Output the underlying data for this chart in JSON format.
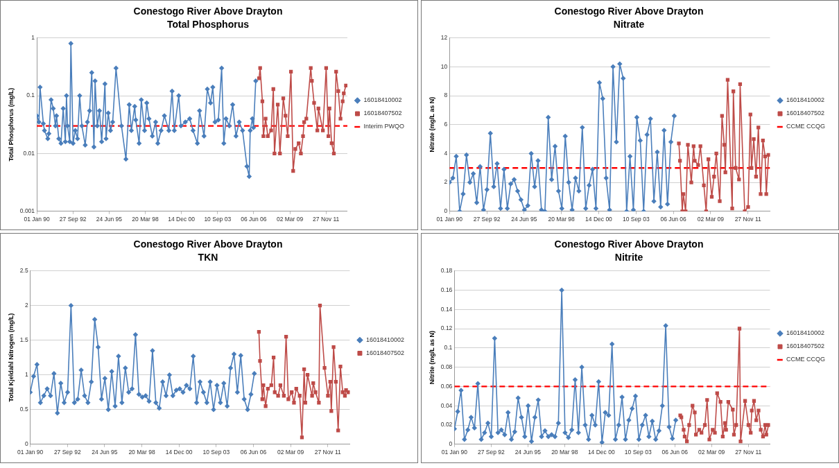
{
  "chart_data": [
    {
      "type": "line",
      "title": "Conestogo River Above Drayton",
      "subtitle": "Total Phosphorus",
      "ylabel": "Total Phosphorus (mg/L)",
      "log": "y",
      "ylim": [
        0.001,
        1
      ],
      "yticks": [
        0.001,
        0.01,
        0.1,
        1
      ],
      "xlim": [
        "1990-01-01",
        "2013-07-10"
      ],
      "xticks": [
        {
          "value": "1990-01-01",
          "label": "01 Jan 90"
        },
        {
          "value": "1992-09-27",
          "label": "27 Sep 92"
        },
        {
          "value": "1995-06-24",
          "label": "24 Jun 95"
        },
        {
          "value": "1998-03-20",
          "label": "20 Mar 98"
        },
        {
          "value": "2000-12-14",
          "label": "14 Dec 00"
        },
        {
          "value": "2003-09-10",
          "label": "10 Sep 03"
        },
        {
          "value": "2006-06-06",
          "label": "06 Jun 06"
        },
        {
          "value": "2009-03-02",
          "label": "02 Mar 09"
        },
        {
          "value": "2011-11-27",
          "label": "27 Nov 11"
        }
      ],
      "grid": "y",
      "legend": "right",
      "ref_lines": [
        {
          "axis": "y",
          "value": 0.03,
          "label": "Interim PWQO",
          "color": "#ff0000",
          "line_style": "dashed"
        }
      ],
      "series": [
        {
          "name": "16018410002",
          "color": "#4a7ebb",
          "marker": "diamond",
          "x": [
            "1990-01",
            "1990-03",
            "1990-04",
            "1990-07",
            "1990-08",
            "1990-11",
            "1990-12",
            "1991-02",
            "1991-04",
            "1991-06",
            "1991-07",
            "1991-09",
            "1991-11",
            "1992-01",
            "1992-03",
            "1992-04",
            "1992-05",
            "1992-07",
            "1992-08",
            "1992-10",
            "1992-12",
            "1993-02",
            "1993-04",
            "1993-06",
            "1993-09",
            "1993-11",
            "1994-01",
            "1994-03",
            "1994-05",
            "1994-06",
            "1994-08",
            "1994-10",
            "1994-12",
            "1995-03",
            "1995-04",
            "1995-06",
            "1995-08",
            "1995-10",
            "1996-01",
            "1996-06",
            "1996-10",
            "1997-01",
            "1997-03",
            "1997-06",
            "1997-07",
            "1997-10",
            "1997-12",
            "1998-03",
            "1998-05",
            "1998-07",
            "1998-10",
            "1999-01",
            "1999-03",
            "1999-06",
            "1999-09",
            "2000-01",
            "2000-04",
            "2000-06",
            "2000-10",
            "2000-12",
            "2001-04",
            "2001-08",
            "2001-11",
            "2002-03",
            "2002-05",
            "2002-09",
            "2002-12",
            "2003-03",
            "2003-05",
            "2003-07",
            "2003-10",
            "2004-01",
            "2004-03",
            "2004-05",
            "2004-08",
            "2004-11",
            "2005-02",
            "2005-05",
            "2005-08",
            "2005-12",
            "2006-02",
            "2006-03",
            "2006-05",
            "2006-06",
            "2006-08"
          ],
          "values": [
            0.045,
            0.035,
            0.14,
            0.033,
            0.025,
            0.018,
            0.022,
            0.085,
            0.06,
            0.03,
            0.045,
            0.018,
            0.015,
            0.06,
            0.016,
            0.1,
            0.03,
            0.016,
            0.8,
            0.015,
            0.025,
            0.018,
            0.1,
            0.03,
            0.014,
            0.035,
            0.055,
            0.25,
            0.013,
            0.18,
            0.03,
            0.055,
            0.016,
            0.16,
            0.018,
            0.05,
            0.025,
            0.035,
            0.3,
            0.03,
            0.008,
            0.07,
            0.025,
            0.065,
            0.038,
            0.015,
            0.085,
            0.025,
            0.075,
            0.04,
            0.02,
            0.035,
            0.015,
            0.025,
            0.045,
            0.025,
            0.12,
            0.025,
            0.1,
            0.03,
            0.035,
            0.04,
            0.025,
            0.015,
            0.055,
            0.02,
            0.13,
            0.075,
            0.14,
            0.035,
            0.038,
            0.3,
            0.015,
            0.04,
            0.03,
            0.07,
            0.02,
            0.035,
            0.025,
            0.006,
            0.004,
            0.025,
            0.04,
            0.028,
            0.18
          ]
        },
        {
          "name": "16018407502",
          "color": "#be4b48",
          "marker": "square",
          "x": [
            "2006-11",
            "2006-12",
            "2007-02",
            "2007-03",
            "2007-05",
            "2007-07",
            "2007-10",
            "2007-12",
            "2008-01",
            "2008-04",
            "2008-06",
            "2008-09",
            "2008-11",
            "2009-01",
            "2009-04",
            "2009-06",
            "2009-08",
            "2009-11",
            "2010-01",
            "2010-03",
            "2010-04",
            "2010-06",
            "2010-10",
            "2010-11",
            "2011-01",
            "2011-04",
            "2011-05",
            "2011-09",
            "2011-12",
            "2012-02",
            "2012-03",
            "2012-05",
            "2012-07",
            "2012-09",
            "2012-11",
            "2013-01",
            "2013-03",
            "2013-04",
            "2013-06"
          ],
          "values": [
            0.2,
            0.3,
            0.08,
            0.02,
            0.04,
            0.02,
            0.025,
            0.13,
            0.01,
            0.07,
            0.01,
            0.09,
            0.045,
            0.02,
            0.26,
            0.005,
            0.012,
            0.015,
            0.01,
            0.02,
            0.035,
            0.04,
            0.3,
            0.18,
            0.075,
            0.025,
            0.06,
            0.025,
            0.3,
            0.02,
            0.06,
            0.015,
            0.01,
            0.26,
            0.12,
            0.04,
            0.08,
            0.11,
            0.15
          ]
        }
      ]
    },
    {
      "type": "line",
      "title": "Conestogo River Above Drayton",
      "subtitle": "Nitrate",
      "ylabel": "Nitrate (mg/L as N)",
      "ylim": [
        0,
        12
      ],
      "yticks": [
        0,
        2,
        4,
        6,
        8,
        10,
        12
      ],
      "xlim": [
        "1990-01-01",
        "2013-07-10"
      ],
      "xticks": [
        {
          "value": "1990-01-01",
          "label": "01 Jan 90"
        },
        {
          "value": "1992-09-27",
          "label": "27 Sep 92"
        },
        {
          "value": "1995-06-24",
          "label": "24 Jun 95"
        },
        {
          "value": "1998-03-20",
          "label": "20 Mar 98"
        },
        {
          "value": "2000-12-14",
          "label": "14 Dec 00"
        },
        {
          "value": "2003-09-10",
          "label": "10 Sep 03"
        },
        {
          "value": "2006-06-06",
          "label": "06 Jun 06"
        },
        {
          "value": "2009-03-02",
          "label": "02 Mar 09"
        },
        {
          "value": "2011-11-27",
          "label": "27 Nov 11"
        }
      ],
      "grid": "y",
      "legend": "right",
      "ref_lines": [
        {
          "axis": "y",
          "value": 3,
          "label": "CCME CCQG",
          "color": "#ff0000",
          "line_style": "dashed"
        }
      ],
      "series": [
        {
          "name": "16018410002",
          "color": "#4a7ebb",
          "marker": "diamond",
          "x": [
            "1990-01",
            "1990-04",
            "1990-07",
            "1990-10",
            "1991-01",
            "1991-04",
            "1991-07",
            "1991-10",
            "1992-01",
            "1992-04",
            "1992-07",
            "1992-10",
            "1993-01",
            "1993-04",
            "1993-07",
            "1993-10",
            "1994-01",
            "1994-04",
            "1994-07",
            "1994-10",
            "1995-01",
            "1995-04",
            "1995-07",
            "1995-10",
            "1996-01",
            "1996-04",
            "1996-07",
            "1996-10",
            "1997-01",
            "1997-04",
            "1997-07",
            "1997-10",
            "1998-01",
            "1998-04",
            "1998-07",
            "1998-10",
            "1999-01",
            "1999-04",
            "1999-07",
            "1999-10",
            "2000-01",
            "2000-04",
            "2000-07",
            "2000-10",
            "2001-01",
            "2001-04",
            "2001-07",
            "2001-10",
            "2002-01",
            "2002-04",
            "2002-07",
            "2002-10",
            "2003-01",
            "2003-04",
            "2003-07",
            "2003-10",
            "2004-01",
            "2004-04",
            "2004-07",
            "2004-10",
            "2005-01",
            "2005-04",
            "2005-07",
            "2005-10",
            "2006-01",
            "2006-04",
            "2006-07"
          ],
          "values": [
            2.0,
            2.3,
            3.8,
            0.0,
            1.2,
            3.9,
            2.0,
            2.6,
            0.6,
            3.1,
            0.1,
            1.5,
            5.4,
            1.7,
            3.3,
            0.2,
            2.9,
            0.2,
            1.9,
            2.2,
            1.4,
            0.8,
            0.1,
            0.4,
            4.0,
            1.7,
            3.5,
            0.1,
            0.0,
            6.5,
            2.2,
            4.5,
            1.4,
            0.2,
            5.2,
            2.0,
            0.1,
            2.3,
            1.4,
            5.8,
            0.2,
            1.8,
            2.9,
            0.2,
            8.9,
            7.8,
            2.3,
            0.1,
            10.0,
            4.8,
            10.2,
            9.2,
            0.0,
            3.8,
            0.1,
            6.5,
            4.9,
            0.0,
            5.3,
            6.4,
            0.7,
            4.1,
            0.3,
            5.6,
            0.5,
            4.8,
            6.6
          ]
        },
        {
          "name": "16018407502",
          "color": "#be4b48",
          "marker": "square",
          "x": [
            "2006-11",
            "2006-12",
            "2007-02",
            "2007-03",
            "2007-05",
            "2007-07",
            "2007-10",
            "2007-12",
            "2008-01",
            "2008-04",
            "2008-06",
            "2008-09",
            "2008-11",
            "2009-01",
            "2009-04",
            "2009-06",
            "2009-08",
            "2009-11",
            "2010-01",
            "2010-03",
            "2010-04",
            "2010-06",
            "2010-10",
            "2010-11",
            "2011-01",
            "2011-04",
            "2011-05",
            "2011-09",
            "2011-12",
            "2012-02",
            "2012-03",
            "2012-05",
            "2012-07",
            "2012-09",
            "2012-11",
            "2013-01",
            "2013-03",
            "2013-04",
            "2013-06"
          ],
          "values": [
            4.7,
            3.5,
            0.0,
            1.2,
            0.0,
            4.6,
            2.0,
            4.5,
            3.5,
            3.2,
            4.5,
            1.8,
            0.0,
            3.6,
            1.0,
            2.4,
            4.0,
            0.7,
            6.6,
            4.6,
            2.7,
            9.1,
            0.2,
            8.3,
            3.0,
            2.2,
            8.8,
            0.0,
            0.3,
            6.7,
            3.0,
            5.0,
            2.4,
            5.8,
            1.2,
            4.9,
            3.8,
            1.2,
            3.9
          ]
        }
      ]
    },
    {
      "type": "line",
      "title": "Conestogo River Above Drayton",
      "subtitle": "TKN",
      "ylabel": "Total Kjeldahl Nitrogen (mg/L)",
      "ylim": [
        0,
        2.5
      ],
      "yticks": [
        0,
        0.5,
        1,
        1.5,
        2,
        2.5
      ],
      "xlim": [
        "1990-01-01",
        "2013-07-10"
      ],
      "xticks": [
        {
          "value": "1990-01-01",
          "label": "01 Jan 90"
        },
        {
          "value": "1992-09-27",
          "label": "27 Sep 92"
        },
        {
          "value": "1995-06-24",
          "label": "24 Jun 95"
        },
        {
          "value": "1998-03-20",
          "label": "20 Mar 98"
        },
        {
          "value": "2000-12-14",
          "label": "14 Dec 00"
        },
        {
          "value": "2003-09-10",
          "label": "10 Sep 03"
        },
        {
          "value": "2006-06-06",
          "label": "06 Jun 06"
        },
        {
          "value": "2009-03-02",
          "label": "02 Mar 09"
        },
        {
          "value": "2011-11-27",
          "label": "27 Nov 11"
        }
      ],
      "grid": "y",
      "legend": "right",
      "series": [
        {
          "name": "16018410002",
          "color": "#4a7ebb",
          "marker": "diamond",
          "x": [
            "1990-01",
            "1990-04",
            "1990-07",
            "1990-10",
            "1991-01",
            "1991-04",
            "1991-07",
            "1991-10",
            "1992-01",
            "1992-04",
            "1992-07",
            "1992-10",
            "1993-01",
            "1993-04",
            "1993-07",
            "1993-10",
            "1994-01",
            "1994-04",
            "1994-07",
            "1994-10",
            "1995-01",
            "1995-04",
            "1995-07",
            "1995-10",
            "1996-01",
            "1996-04",
            "1996-07",
            "1996-10",
            "1997-01",
            "1997-04",
            "1997-07",
            "1997-10",
            "1998-01",
            "1998-04",
            "1998-07",
            "1998-10",
            "1999-01",
            "1999-04",
            "1999-07",
            "1999-10",
            "2000-01",
            "2000-04",
            "2000-07",
            "2000-10",
            "2001-01",
            "2001-04",
            "2001-07",
            "2001-10",
            "2002-01",
            "2002-04",
            "2002-07",
            "2002-10",
            "2003-01",
            "2003-04",
            "2003-07",
            "2003-10",
            "2004-01",
            "2004-04",
            "2004-07",
            "2004-10",
            "2005-01",
            "2005-04",
            "2005-07",
            "2005-10",
            "2006-01",
            "2006-04",
            "2006-07"
          ],
          "values": [
            0.75,
            0.98,
            1.15,
            0.6,
            0.7,
            0.8,
            0.7,
            1.02,
            0.45,
            0.88,
            0.6,
            0.75,
            2.0,
            0.6,
            0.65,
            1.07,
            0.7,
            0.6,
            0.9,
            1.8,
            1.4,
            0.65,
            0.95,
            0.5,
            1.05,
            0.55,
            1.27,
            0.6,
            1.1,
            0.75,
            0.8,
            1.58,
            0.72,
            0.68,
            0.7,
            0.62,
            1.35,
            0.6,
            0.52,
            0.9,
            0.7,
            1.0,
            0.7,
            0.78,
            0.8,
            0.75,
            0.85,
            0.8,
            1.27,
            0.6,
            0.9,
            0.75,
            0.6,
            0.9,
            0.5,
            0.85,
            0.6,
            0.88,
            0.55,
            1.1,
            1.3,
            0.75,
            1.28,
            0.65,
            0.5,
            0.72,
            1.02
          ]
        },
        {
          "name": "16018407502",
          "color": "#be4b48",
          "marker": "square",
          "x": [
            "2006-11",
            "2006-12",
            "2007-02",
            "2007-03",
            "2007-05",
            "2007-07",
            "2007-10",
            "2007-12",
            "2008-01",
            "2008-04",
            "2008-06",
            "2008-09",
            "2008-11",
            "2009-01",
            "2009-04",
            "2009-06",
            "2009-08",
            "2009-11",
            "2010-01",
            "2010-03",
            "2010-04",
            "2010-06",
            "2010-10",
            "2010-11",
            "2011-01",
            "2011-04",
            "2011-05",
            "2011-09",
            "2011-12",
            "2012-02",
            "2012-03",
            "2012-05",
            "2012-07",
            "2012-09",
            "2012-11",
            "2013-01",
            "2013-03",
            "2013-04",
            "2013-06"
          ],
          "values": [
            1.62,
            1.2,
            0.65,
            0.85,
            0.55,
            0.8,
            0.85,
            1.25,
            0.75,
            0.7,
            0.85,
            0.7,
            1.55,
            0.65,
            0.75,
            0.6,
            0.8,
            0.7,
            0.1,
            1.08,
            0.6,
            1.0,
            0.7,
            0.88,
            0.75,
            0.6,
            2.0,
            1.1,
            0.7,
            0.9,
            0.48,
            1.4,
            0.9,
            0.2,
            1.12,
            0.75,
            0.7,
            0.78,
            0.75
          ]
        }
      ]
    },
    {
      "type": "line",
      "title": "Conestogo River Above Drayton",
      "subtitle": "Nitrite",
      "ylabel": "Nitrite (mg/L as N)",
      "ylim": [
        0,
        0.18
      ],
      "yticks": [
        0,
        0.02,
        0.04,
        0.06,
        0.08,
        0.1,
        0.12,
        0.14,
        0.16,
        0.18
      ],
      "xlim": [
        "1990-01-01",
        "2013-07-10"
      ],
      "xticks": [
        {
          "value": "1990-01-01",
          "label": "01 Jan 90"
        },
        {
          "value": "1992-09-27",
          "label": "27 Sep 92"
        },
        {
          "value": "1995-06-24",
          "label": "24 Jun 95"
        },
        {
          "value": "1998-03-20",
          "label": "20 Mar 98"
        },
        {
          "value": "2000-12-14",
          "label": "14 Dec 00"
        },
        {
          "value": "2003-09-10",
          "label": "10 Sep 03"
        },
        {
          "value": "2006-06-06",
          "label": "06 Jun 06"
        },
        {
          "value": "2009-03-02",
          "label": "02 Mar 09"
        },
        {
          "value": "2011-11-27",
          "label": "27 Nov 11"
        }
      ],
      "grid": "y",
      "legend": "right",
      "ref_lines": [
        {
          "axis": "y",
          "value": 0.06,
          "label": "CCME CCQG",
          "color": "#ff0000",
          "line_style": "dashed"
        }
      ],
      "series": [
        {
          "name": "16018410002",
          "color": "#4a7ebb",
          "marker": "diamond",
          "x": [
            "1990-01",
            "1990-04",
            "1990-07",
            "1990-10",
            "1991-01",
            "1991-04",
            "1991-07",
            "1991-10",
            "1992-01",
            "1992-04",
            "1992-07",
            "1992-10",
            "1993-01",
            "1993-04",
            "1993-07",
            "1993-10",
            "1994-01",
            "1994-04",
            "1994-07",
            "1994-10",
            "1995-01",
            "1995-04",
            "1995-07",
            "1995-10",
            "1996-01",
            "1996-04",
            "1996-07",
            "1996-10",
            "1997-01",
            "1997-04",
            "1997-07",
            "1997-10",
            "1998-01",
            "1998-04",
            "1998-07",
            "1998-10",
            "1999-01",
            "1999-04",
            "1999-07",
            "1999-10",
            "2000-01",
            "2000-04",
            "2000-07",
            "2000-10",
            "2001-01",
            "2001-04",
            "2001-07",
            "2001-10",
            "2002-01",
            "2002-04",
            "2002-07",
            "2002-10",
            "2003-01",
            "2003-04",
            "2003-07",
            "2003-10",
            "2004-01",
            "2004-04",
            "2004-07",
            "2004-10",
            "2005-01",
            "2005-04",
            "2005-07",
            "2005-10",
            "2006-01",
            "2006-04",
            "2006-07"
          ],
          "values": [
            0.016,
            0.034,
            0.056,
            0.005,
            0.015,
            0.028,
            0.017,
            0.063,
            0.005,
            0.012,
            0.022,
            0.008,
            0.11,
            0.012,
            0.015,
            0.01,
            0.033,
            0.005,
            0.013,
            0.048,
            0.028,
            0.008,
            0.04,
            0.003,
            0.028,
            0.046,
            0.008,
            0.014,
            0.008,
            0.01,
            0.008,
            0.022,
            0.16,
            0.012,
            0.007,
            0.015,
            0.067,
            0.012,
            0.08,
            0.02,
            0.005,
            0.03,
            0.02,
            0.065,
            0.002,
            0.033,
            0.03,
            0.104,
            0.005,
            0.02,
            0.049,
            0.005,
            0.025,
            0.037,
            0.05,
            0.005,
            0.02,
            0.03,
            0.008,
            0.024,
            0.005,
            0.014,
            0.04,
            0.123,
            0.018,
            0.006,
            0.025
          ]
        },
        {
          "name": "16018407502",
          "color": "#be4b48",
          "marker": "square",
          "x": [
            "2006-11",
            "2006-12",
            "2007-02",
            "2007-03",
            "2007-05",
            "2007-07",
            "2007-10",
            "2007-12",
            "2008-01",
            "2008-04",
            "2008-06",
            "2008-09",
            "2008-11",
            "2009-01",
            "2009-04",
            "2009-06",
            "2009-08",
            "2009-11",
            "2010-01",
            "2010-03",
            "2010-04",
            "2010-06",
            "2010-10",
            "2010-11",
            "2011-01",
            "2011-04",
            "2011-05",
            "2011-09",
            "2011-12",
            "2012-02",
            "2012-03",
            "2012-05",
            "2012-07",
            "2012-09",
            "2012-11",
            "2013-01",
            "2013-03",
            "2013-04",
            "2013-06"
          ],
          "values": [
            0.03,
            0.028,
            0.015,
            0.008,
            0.003,
            0.02,
            0.04,
            0.033,
            0.01,
            0.015,
            0.012,
            0.02,
            0.046,
            0.005,
            0.015,
            0.012,
            0.053,
            0.044,
            0.008,
            0.022,
            0.015,
            0.044,
            0.036,
            0.01,
            0.02,
            0.12,
            0.003,
            0.045,
            0.02,
            0.012,
            0.035,
            0.045,
            0.025,
            0.035,
            0.015,
            0.008,
            0.02,
            0.01,
            0.02
          ]
        }
      ]
    }
  ]
}
